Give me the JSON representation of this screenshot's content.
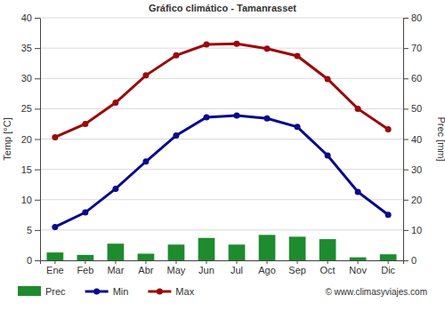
{
  "chart_data": {
    "type": "line",
    "title": "Gráfico climático - Tamanrasset",
    "ylabel": "Temp [°C]",
    "y2label": "Prec [mm]",
    "categories": [
      "Ene",
      "Feb",
      "Mar",
      "Abr",
      "May",
      "Jun",
      "Jul",
      "Ago",
      "Sep",
      "Oct",
      "Nov",
      "Dic"
    ],
    "series": [
      {
        "name": "Prec",
        "type": "bar",
        "axis": "y2",
        "color": "#1e8b2e",
        "values": [
          2.6,
          1.8,
          5.5,
          2.2,
          5.2,
          7.4,
          5.2,
          8.4,
          7.8,
          7.0,
          1.0,
          2.0
        ]
      },
      {
        "name": "Min",
        "type": "line",
        "color": "#0a0a8c",
        "marker": "circle",
        "values": [
          5.5,
          7.9,
          11.8,
          16.3,
          20.6,
          23.6,
          23.9,
          23.4,
          22.0,
          17.3,
          11.3,
          7.5
        ]
      },
      {
        "name": "Max",
        "type": "line",
        "color": "#9b0a0a",
        "marker": "circle",
        "values": [
          20.3,
          22.5,
          26.0,
          30.5,
          33.8,
          35.6,
          35.7,
          34.9,
          33.7,
          29.9,
          25.0,
          21.6
        ]
      }
    ],
    "ylim": [
      0,
      40
    ],
    "yticks": [
      0,
      5,
      10,
      15,
      20,
      25,
      30,
      35,
      40
    ],
    "y2lim": [
      0,
      80
    ],
    "y2ticks": [
      0,
      10,
      20,
      30,
      40,
      50,
      60,
      70,
      80
    ],
    "grid": true,
    "legend": "bottom",
    "annotations": [
      "© www.climasyviajes.com"
    ]
  }
}
